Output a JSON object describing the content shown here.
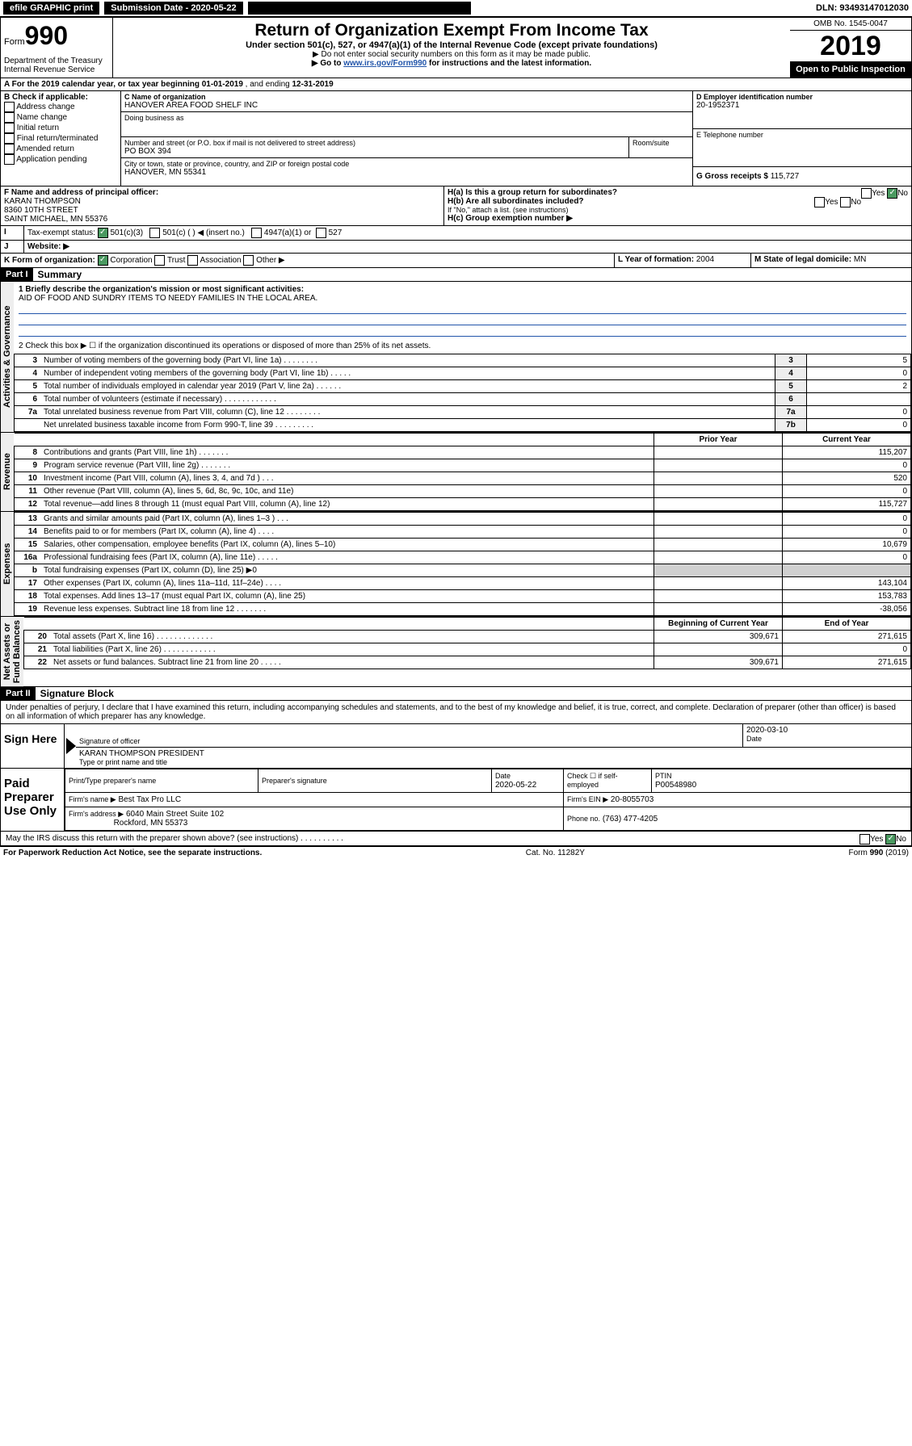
{
  "topbar": {
    "efile": "efile GRAPHIC print",
    "submission_label": "Submission Date - 2020-05-22",
    "dln": "DLN: 93493147012030"
  },
  "header": {
    "form_prefix": "Form",
    "form_num": "990",
    "title": "Return of Organization Exempt From Income Tax",
    "sub": "Under section 501(c), 527, or 4947(a)(1) of the Internal Revenue Code (except private foundations)",
    "note1": "▶ Do not enter social security numbers on this form as it may be made public.",
    "note2_pre": "▶ Go to ",
    "note2_link": "www.irs.gov/Form990",
    "note2_post": " for instructions and the latest information.",
    "dept": "Department of the Treasury\nInternal Revenue Service",
    "omb": "OMB No. 1545-0047",
    "year": "2019",
    "inspect": "Open to Public Inspection"
  },
  "period": {
    "text_pre": "A For the 2019 calendar year, or tax year beginning ",
    "begin": "01-01-2019",
    "mid": " , and ending ",
    "end": "12-31-2019"
  },
  "boxB": {
    "label": "B Check if applicable:",
    "items": [
      "Address change",
      "Name change",
      "Initial return",
      "Final return/terminated",
      "Amended return",
      "Application pending"
    ]
  },
  "boxC": {
    "label_name": "C Name of organization",
    "name": "HANOVER AREA FOOD SHELF INC",
    "dba_label": "Doing business as",
    "dba": "",
    "addr_label": "Number and street (or P.O. box if mail is not delivered to street address)",
    "room_label": "Room/suite",
    "addr": "PO BOX 394",
    "city_label": "City or town, state or province, country, and ZIP or foreign postal code",
    "city": "HANOVER, MN  55341"
  },
  "boxD": {
    "label": "D Employer identification number",
    "ein": "20-1952371"
  },
  "boxE": {
    "label": "E Telephone number",
    "val": ""
  },
  "boxG": {
    "label": "G Gross receipts $",
    "val": "115,727"
  },
  "boxF": {
    "label": "F Name and address of principal officer:",
    "name": "KARAN THOMPSON",
    "street": "8360 10TH STREET",
    "city": "SAINT MICHAEL, MN  55376"
  },
  "boxH": {
    "a_label": "H(a)  Is this a group return for subordinates?",
    "b_label": "H(b)  Are all subordinates included?",
    "b_note": "If \"No,\" attach a list. (see instructions)",
    "c_label": "H(c)  Group exemption number ▶",
    "yes": "Yes",
    "no": "No"
  },
  "boxI": {
    "label": "Tax-exempt status:",
    "c3": "501(c)(3)",
    "c_blank": "501(c) (   ) ◀ (insert no.)",
    "a1": "4947(a)(1) or",
    "527": "527"
  },
  "boxJ": {
    "label": "Website: ▶",
    "val": ""
  },
  "boxK": {
    "label": "K Form of organization:",
    "corp": "Corporation",
    "trust": "Trust",
    "assoc": "Association",
    "other": "Other ▶"
  },
  "boxL": {
    "label": "L Year of formation:",
    "val": "2004"
  },
  "boxM": {
    "label": "M State of legal domicile:",
    "val": "MN"
  },
  "parts": {
    "p1": "Part I",
    "p1_title": "Summary",
    "p2": "Part II",
    "p2_title": "Signature Block"
  },
  "summary": {
    "line1_label": "1  Briefly describe the organization's mission or most significant activities:",
    "line1_val": "AID OF FOOD AND SUNDRY ITEMS TO NEEDY FAMILIES IN THE LOCAL AREA.",
    "line2": "2   Check this box ▶ ☐  if the organization discontinued its operations or disposed of more than 25% of its net assets.",
    "lines_ag": [
      {
        "n": "3",
        "desc": "Number of voting members of the governing body (Part VI, line 1a)  .    .    .    .    .    .    .    .",
        "box": "3",
        "val": "5"
      },
      {
        "n": "4",
        "desc": "Number of independent voting members of the governing body (Part VI, line 1b)   .    .    .    .    .",
        "box": "4",
        "val": "0"
      },
      {
        "n": "5",
        "desc": "Total number of individuals employed in calendar year 2019 (Part V, line 2a)   .    .    .    .    .    .",
        "box": "5",
        "val": "2"
      },
      {
        "n": "6",
        "desc": "Total number of volunteers (estimate if necessary)   .    .    .    .    .    .    .    .    .    .    .    .",
        "box": "6",
        "val": ""
      },
      {
        "n": "7a",
        "desc": "Total unrelated business revenue from Part VIII, column (C), line 12   .    .    .    .    .    .    .    .",
        "box": "7a",
        "val": "0"
      },
      {
        "n": "",
        "desc": "Net unrelated business taxable income from Form 990-T, line 39   .    .    .    .    .    .    .    .    .",
        "box": "7b",
        "val": "0"
      }
    ],
    "col_prior": "Prior Year",
    "col_current": "Current Year",
    "lines_rev": [
      {
        "n": "8",
        "desc": "Contributions and grants (Part VIII, line 1h)   .    .    .    .    .    .    .",
        "p": "",
        "c": "115,207"
      },
      {
        "n": "9",
        "desc": "Program service revenue (Part VIII, line 2g)   .    .    .    .    .    .    .",
        "p": "",
        "c": "0"
      },
      {
        "n": "10",
        "desc": "Investment income (Part VIII, column (A), lines 3, 4, and 7d )   .    .    .",
        "p": "",
        "c": "520"
      },
      {
        "n": "11",
        "desc": "Other revenue (Part VIII, column (A), lines 5, 6d, 8c, 9c, 10c, and 11e)",
        "p": "",
        "c": "0"
      },
      {
        "n": "12",
        "desc": "Total revenue—add lines 8 through 11 (must equal Part VIII, column (A), line 12)",
        "p": "",
        "c": "115,727"
      }
    ],
    "lines_exp": [
      {
        "n": "13",
        "desc": "Grants and similar amounts paid (Part IX, column (A), lines 1–3 )   .    .    .",
        "p": "",
        "c": "0"
      },
      {
        "n": "14",
        "desc": "Benefits paid to or for members (Part IX, column (A), line 4)   .    .    .    .",
        "p": "",
        "c": "0"
      },
      {
        "n": "15",
        "desc": "Salaries, other compensation, employee benefits (Part IX, column (A), lines 5–10)",
        "p": "",
        "c": "10,679"
      },
      {
        "n": "16a",
        "desc": "Professional fundraising fees (Part IX, column (A), line 11e)   .    .    .    .    .",
        "p": "",
        "c": "0"
      },
      {
        "n": "b",
        "desc": "Total fundraising expenses (Part IX, column (D), line 25) ▶0",
        "p": "GREY",
        "c": "GREY"
      },
      {
        "n": "17",
        "desc": "Other expenses (Part IX, column (A), lines 11a–11d, 11f–24e)   .    .    .    .",
        "p": "",
        "c": "143,104"
      },
      {
        "n": "18",
        "desc": "Total expenses. Add lines 13–17 (must equal Part IX, column (A), line 25)",
        "p": "",
        "c": "153,783"
      },
      {
        "n": "19",
        "desc": "Revenue less expenses. Subtract line 18 from line 12   .    .    .    .    .    .    .",
        "p": "",
        "c": "-38,056"
      }
    ],
    "col_beg": "Beginning of Current Year",
    "col_end": "End of Year",
    "lines_net": [
      {
        "n": "20",
        "desc": "Total assets (Part X, line 16)   .    .    .    .    .    .    .    .    .    .    .    .    .",
        "p": "309,671",
        "c": "271,615"
      },
      {
        "n": "21",
        "desc": "Total liabilities (Part X, line 26)   .    .    .    .    .    .    .    .    .    .    .    .",
        "p": "",
        "c": "0"
      },
      {
        "n": "22",
        "desc": "Net assets or fund balances. Subtract line 21 from line 20   .    .    .    .    .",
        "p": "309,671",
        "c": "271,615"
      }
    ],
    "vlabels": {
      "ag": "Activities & Governance",
      "rev": "Revenue",
      "exp": "Expenses",
      "net": "Net Assets or\nFund Balances"
    }
  },
  "sig": {
    "perjury": "Under penalties of perjury, I declare that I have examined this return, including accompanying schedules and statements, and to the best of my knowledge and belief, it is true, correct, and complete. Declaration of preparer (other than officer) is based on all information of which preparer has any knowledge.",
    "sign_here": "Sign Here",
    "sig_officer": "Signature of officer",
    "date_label": "Date",
    "date_val": "2020-03-10",
    "name_title": "KARAN THOMPSON  PRESIDENT",
    "type_label": "Type or print name and title",
    "paid_label": "Paid Preparer Use Only",
    "prep_name_label": "Print/Type preparer's name",
    "prep_sig_label": "Preparer's signature",
    "prep_date_label": "Date",
    "prep_date": "2020-05-22",
    "check_label": "Check ☐ if self-employed",
    "ptin_label": "PTIN",
    "ptin": "P00548980",
    "firm_name_label": "Firm's name    ▶",
    "firm_name": "Best Tax Pro LLC",
    "firm_ein_label": "Firm's EIN ▶",
    "firm_ein": "20-8055703",
    "firm_addr_label": "Firm's address ▶",
    "firm_addr1": "6040 Main Street Suite 102",
    "firm_addr2": "Rockford, MN  55373",
    "phone_label": "Phone no.",
    "phone": "(763) 477-4205",
    "irs_discuss": "May the IRS discuss this return with the preparer shown above? (see instructions)    .    .    .    .    .    .    .    .    .    .",
    "yes": "Yes",
    "no": "No"
  },
  "footer": {
    "pra": "For Paperwork Reduction Act Notice, see the separate instructions.",
    "cat": "Cat. No. 11282Y",
    "form": "Form 990 (2019)"
  }
}
